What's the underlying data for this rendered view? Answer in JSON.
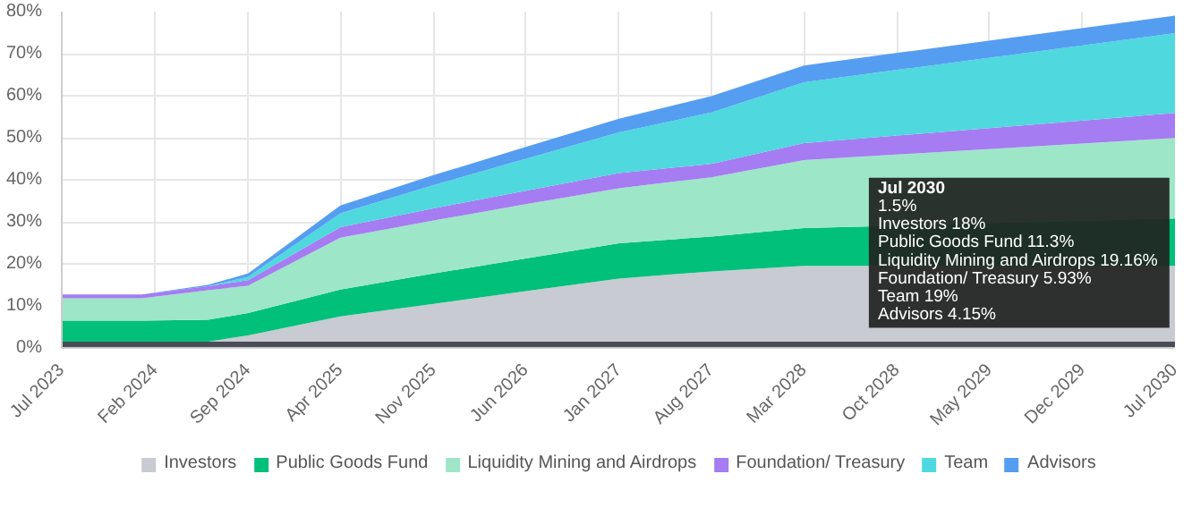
{
  "chart_data": {
    "type": "area",
    "stacked": true,
    "x": [
      "2023-07",
      "2024-01",
      "2024-06",
      "2024-09",
      "2025-04",
      "2025-11",
      "2026-06",
      "2027-01",
      "2027-08",
      "2028-03",
      "2030-07"
    ],
    "series": [
      {
        "color": "#4a4d57",
        "values": [
          1.5,
          1.5,
          1.5,
          1.5,
          1.5,
          1.5,
          1.5,
          1.5,
          1.5,
          1.5,
          1.5
        ]
      },
      {
        "name": "Investors",
        "color": "#c8cbd1",
        "values": [
          0,
          0,
          0,
          1.5,
          6,
          9,
          12,
          15,
          16.7,
          18,
          18
        ]
      },
      {
        "name": "Public Goods Fund",
        "color": "#00c07a",
        "values": [
          5,
          5,
          5.2,
          5.3,
          6.4,
          7.2,
          7.8,
          8.4,
          8.3,
          9,
          11.3
        ]
      },
      {
        "name": "Liquidity Mining and Airdrops",
        "color": "#9ee6c8",
        "values": [
          5.3,
          5.3,
          7,
          6.5,
          12.3,
          12.6,
          12.9,
          13.1,
          14.1,
          16.2,
          19.16
        ]
      },
      {
        "name": "Foundation/ Treasury",
        "color": "#a57cf2",
        "values": [
          0.9,
          0.9,
          1,
          1.3,
          2.5,
          2.9,
          3.2,
          3.6,
          3.2,
          4,
          5.93
        ]
      },
      {
        "name": "Team",
        "color": "#4fd8de",
        "values": [
          0,
          0,
          0,
          0.8,
          3.3,
          5.5,
          7.6,
          9.7,
          12.2,
          14.5,
          19
        ]
      },
      {
        "name": "Advisors",
        "color": "#559df0",
        "values": [
          0,
          0,
          0.3,
          0.8,
          1.9,
          2.4,
          2.8,
          3.2,
          3.9,
          4,
          4.15
        ]
      }
    ],
    "xlim": [
      "2023-07",
      "2030-07"
    ],
    "xticks": [
      {
        "value": "2023-07",
        "label": "Jul 2023"
      },
      {
        "value": "2024-02",
        "label": "Feb 2024"
      },
      {
        "value": "2024-09",
        "label": "Sep 2024"
      },
      {
        "value": "2025-04",
        "label": "Apr 2025"
      },
      {
        "value": "2025-11",
        "label": "Nov 2025"
      },
      {
        "value": "2026-06",
        "label": "Jun 2026"
      },
      {
        "value": "2027-01",
        "label": "Jan 2027"
      },
      {
        "value": "2027-08",
        "label": "Aug 2027"
      },
      {
        "value": "2028-03",
        "label": "Mar 2028"
      },
      {
        "value": "2028-10",
        "label": "Oct 2028"
      },
      {
        "value": "2029-05",
        "label": "May 2029"
      },
      {
        "value": "2029-12",
        "label": "Dec 2029"
      },
      {
        "value": "2030-07",
        "label": "Jul 2030"
      }
    ],
    "ylim": [
      0,
      80
    ],
    "yticks": [
      {
        "value": 0,
        "label": "0%"
      },
      {
        "value": 10,
        "label": "10%"
      },
      {
        "value": 20,
        "label": "20%"
      },
      {
        "value": 30,
        "label": "30%"
      },
      {
        "value": 40,
        "label": "40%"
      },
      {
        "value": 50,
        "label": "50%"
      },
      {
        "value": 60,
        "label": "60%"
      },
      {
        "value": 70,
        "label": "70%"
      },
      {
        "value": 80,
        "label": "80%"
      }
    ],
    "grid": true,
    "legend": "bottom",
    "annotations": [
      "Jul 2030",
      "1.5%",
      "Investors 18%",
      "Public Goods Fund 11.3%",
      "Liquidity Mining and Airdrops 19.16%",
      "Foundation/ Treasury 5.93%",
      "Team 19%",
      "Advisors 4.15%"
    ]
  }
}
